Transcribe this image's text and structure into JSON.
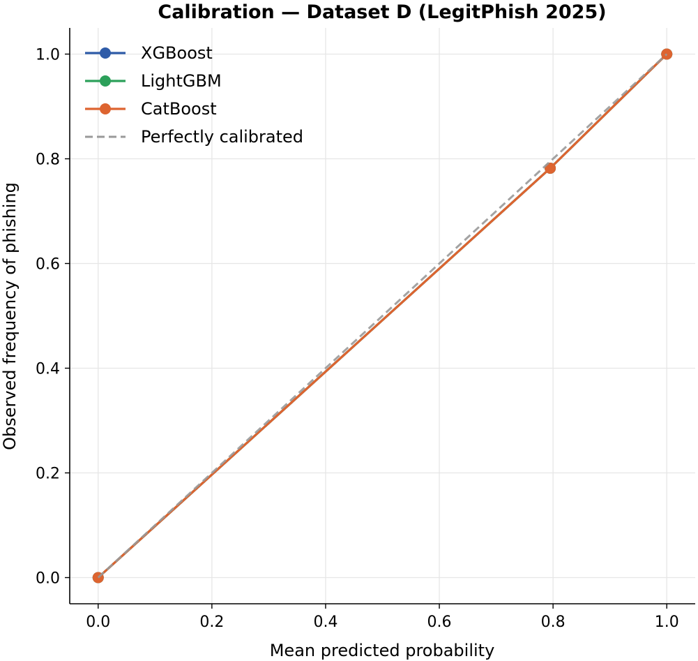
{
  "chart_data": {
    "type": "line",
    "title": "Calibration — Dataset D (LegitPhish 2025)",
    "xlabel": "Mean predicted probability",
    "ylabel": "Observed frequency of phishing",
    "xlim": [
      -0.05,
      1.05
    ],
    "ylim": [
      -0.05,
      1.05
    ],
    "xticks": [
      0.0,
      0.2,
      0.4,
      0.6,
      0.8,
      1.0
    ],
    "yticks": [
      0.0,
      0.2,
      0.4,
      0.6,
      0.8,
      1.0
    ],
    "xtick_labels": [
      "0.0",
      "0.2",
      "0.4",
      "0.6",
      "0.8",
      "1.0"
    ],
    "ytick_labels": [
      "0.0",
      "0.2",
      "0.4",
      "0.6",
      "0.8",
      "1.0"
    ],
    "grid": true,
    "legend_position": "top-left",
    "series": [
      {
        "name": "XGBoost",
        "color": "#2f5ca8",
        "marker": "circle",
        "style": "solid",
        "x": [
          0.0,
          0.795,
          1.0
        ],
        "y": [
          0.0,
          0.782,
          1.0
        ]
      },
      {
        "name": "LightGBM",
        "color": "#2ca05a",
        "marker": "circle",
        "style": "solid",
        "x": [
          0.0,
          0.795,
          1.0
        ],
        "y": [
          0.0,
          0.782,
          1.0
        ]
      },
      {
        "name": "CatBoost",
        "color": "#dd6430",
        "marker": "circle",
        "style": "solid",
        "x": [
          0.0,
          0.795,
          1.0
        ],
        "y": [
          0.0,
          0.782,
          1.0
        ]
      },
      {
        "name": "Perfectly calibrated",
        "color": "#999999",
        "marker": "none",
        "style": "dashed",
        "x": [
          0.0,
          1.0
        ],
        "y": [
          0.0,
          1.0
        ]
      }
    ]
  }
}
